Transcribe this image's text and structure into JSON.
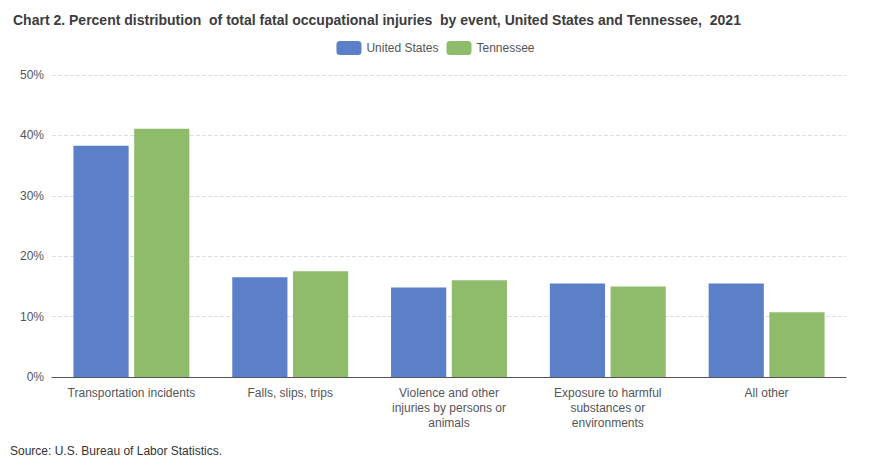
{
  "chart_data": {
    "type": "bar",
    "title": "Chart 2. Percent distribution  of total fatal occupational injuries  by event, United States and Tennessee,  2021",
    "categories": [
      "Transportation incidents",
      "Falls, slips, trips",
      "Violence and other\ninjuries by persons or\nanimals",
      "Exposure to harmful\nsubstances or\nenvironments",
      "All other"
    ],
    "series": [
      {
        "name": "United States",
        "color": "#5b80c8",
        "values": [
          38.3,
          16.5,
          14.8,
          15.5,
          15.5
        ]
      },
      {
        "name": "Tennessee",
        "color": "#8fbc6a",
        "values": [
          41.1,
          17.5,
          16.0,
          15.0,
          10.7
        ]
      }
    ],
    "ylim": [
      0,
      50
    ],
    "yticks": [
      {
        "value": 0,
        "label": "0%"
      },
      {
        "value": 10,
        "label": "10%"
      },
      {
        "value": 20,
        "label": "20%"
      },
      {
        "value": 30,
        "label": "30%"
      },
      {
        "value": 40,
        "label": "40%"
      },
      {
        "value": 50,
        "label": "50%"
      }
    ],
    "grid": true,
    "legend": "top",
    "annotations": [
      "Source: U.S. Bureau of Labor Statistics."
    ]
  }
}
